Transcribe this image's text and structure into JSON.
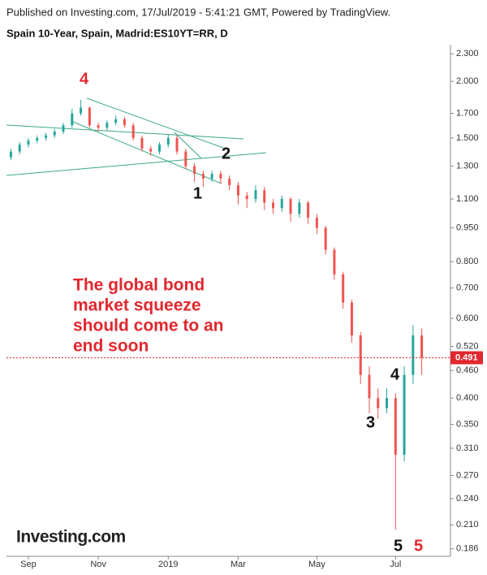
{
  "header": {
    "published": "Published on Investing.com, 17/Jul/2019 - 5:41:21 GMT, Powered by TradingView.",
    "logo": "Investing.com"
  },
  "chart_data": {
    "type": "candlestick",
    "title": "Spain 10-Year, Spain, Madrid:ES10YT=RR, D",
    "log_scale": true,
    "grid": false,
    "up_color": "#26a69a",
    "down_color": "#ef5350",
    "categories": [
      null,
      null,
      "Sep",
      null,
      null,
      null,
      null,
      null,
      null,
      null,
      "Nov",
      null,
      null,
      null,
      null,
      null,
      null,
      null,
      "2019",
      null,
      null,
      null,
      null,
      null,
      null,
      null,
      "Mar",
      null,
      null,
      null,
      null,
      null,
      null,
      null,
      null,
      "May",
      null,
      null,
      null,
      null,
      null,
      null,
      null,
      null,
      "Jul",
      null,
      null,
      null
    ],
    "open": [
      1.36,
      1.4,
      1.45,
      1.48,
      1.5,
      1.52,
      1.55,
      1.6,
      1.7,
      1.75,
      1.6,
      1.58,
      1.62,
      1.65,
      1.6,
      1.5,
      1.42,
      1.4,
      1.45,
      1.5,
      1.4,
      1.3,
      1.25,
      1.22,
      1.25,
      1.22,
      1.18,
      1.12,
      1.1,
      1.15,
      1.08,
      1.05,
      1.1,
      1.02,
      1.08,
      1.0,
      0.95,
      0.85,
      0.75,
      0.65,
      0.55,
      0.45,
      0.4,
      0.38,
      0.4,
      0.3,
      0.45,
      0.55
    ],
    "high": [
      1.42,
      1.47,
      1.5,
      1.52,
      1.54,
      1.57,
      1.62,
      1.74,
      1.82,
      1.76,
      1.62,
      1.64,
      1.68,
      1.67,
      1.62,
      1.52,
      1.44,
      1.47,
      1.53,
      1.52,
      1.42,
      1.32,
      1.27,
      1.27,
      1.27,
      1.24,
      1.2,
      1.14,
      1.18,
      1.17,
      1.1,
      1.12,
      1.11,
      1.1,
      1.09,
      1.02,
      0.96,
      0.86,
      0.76,
      0.66,
      0.56,
      0.47,
      0.42,
      0.42,
      0.41,
      0.47,
      0.58,
      0.57
    ],
    "low": [
      1.34,
      1.38,
      1.43,
      1.46,
      1.48,
      1.5,
      1.53,
      1.58,
      1.68,
      1.58,
      1.55,
      1.56,
      1.6,
      1.58,
      1.48,
      1.4,
      1.37,
      1.38,
      1.43,
      1.38,
      1.28,
      1.2,
      1.17,
      1.2,
      1.19,
      1.15,
      1.07,
      1.05,
      1.08,
      1.04,
      1.02,
      1.03,
      0.98,
      1.0,
      0.97,
      0.92,
      0.83,
      0.73,
      0.63,
      0.53,
      0.43,
      0.37,
      0.36,
      0.37,
      0.205,
      0.29,
      0.43,
      0.45
    ],
    "close": [
      1.4,
      1.45,
      1.48,
      1.5,
      1.52,
      1.55,
      1.6,
      1.7,
      1.75,
      1.6,
      1.58,
      1.62,
      1.65,
      1.6,
      1.5,
      1.42,
      1.4,
      1.45,
      1.5,
      1.4,
      1.3,
      1.25,
      1.22,
      1.25,
      1.22,
      1.18,
      1.12,
      1.1,
      1.15,
      1.08,
      1.05,
      1.1,
      1.02,
      1.08,
      1.0,
      0.95,
      0.85,
      0.75,
      0.65,
      0.55,
      0.45,
      0.4,
      0.38,
      0.4,
      0.3,
      0.45,
      0.55,
      0.491
    ],
    "ylim": [
      0.179,
      2.41
    ],
    "yticks": [
      {
        "value": 2.3,
        "label": "2.300"
      },
      {
        "value": 2.0,
        "label": "2.000"
      },
      {
        "value": 1.7,
        "label": "1.700"
      },
      {
        "value": 1.5,
        "label": "1.500"
      },
      {
        "value": 1.3,
        "label": "1.300"
      },
      {
        "value": 1.1,
        "label": "1.100"
      },
      {
        "value": 0.95,
        "label": "0.950"
      },
      {
        "value": 0.8,
        "label": "0.800"
      },
      {
        "value": 0.7,
        "label": "0.700"
      },
      {
        "value": 0.6,
        "label": "0.600"
      },
      {
        "value": 0.52,
        "label": "0.520"
      },
      {
        "value": 0.46,
        "label": "0.460"
      },
      {
        "value": 0.4,
        "label": "0.400"
      },
      {
        "value": 0.35,
        "label": "0.350"
      },
      {
        "value": 0.31,
        "label": "0.310"
      },
      {
        "value": 0.27,
        "label": "0.270"
      },
      {
        "value": 0.24,
        "label": "0.240"
      },
      {
        "value": 0.21,
        "label": "0.210"
      },
      {
        "value": 0.186,
        "label": "0.186"
      }
    ],
    "last_price_color": "#e0282e",
    "wave_labels": [
      "4",
      "2",
      "1",
      "4",
      "3",
      "5",
      "5"
    ],
    "annotation": [
      "The global bond",
      "market squeeze",
      "should come to an",
      "end soon"
    ]
  }
}
